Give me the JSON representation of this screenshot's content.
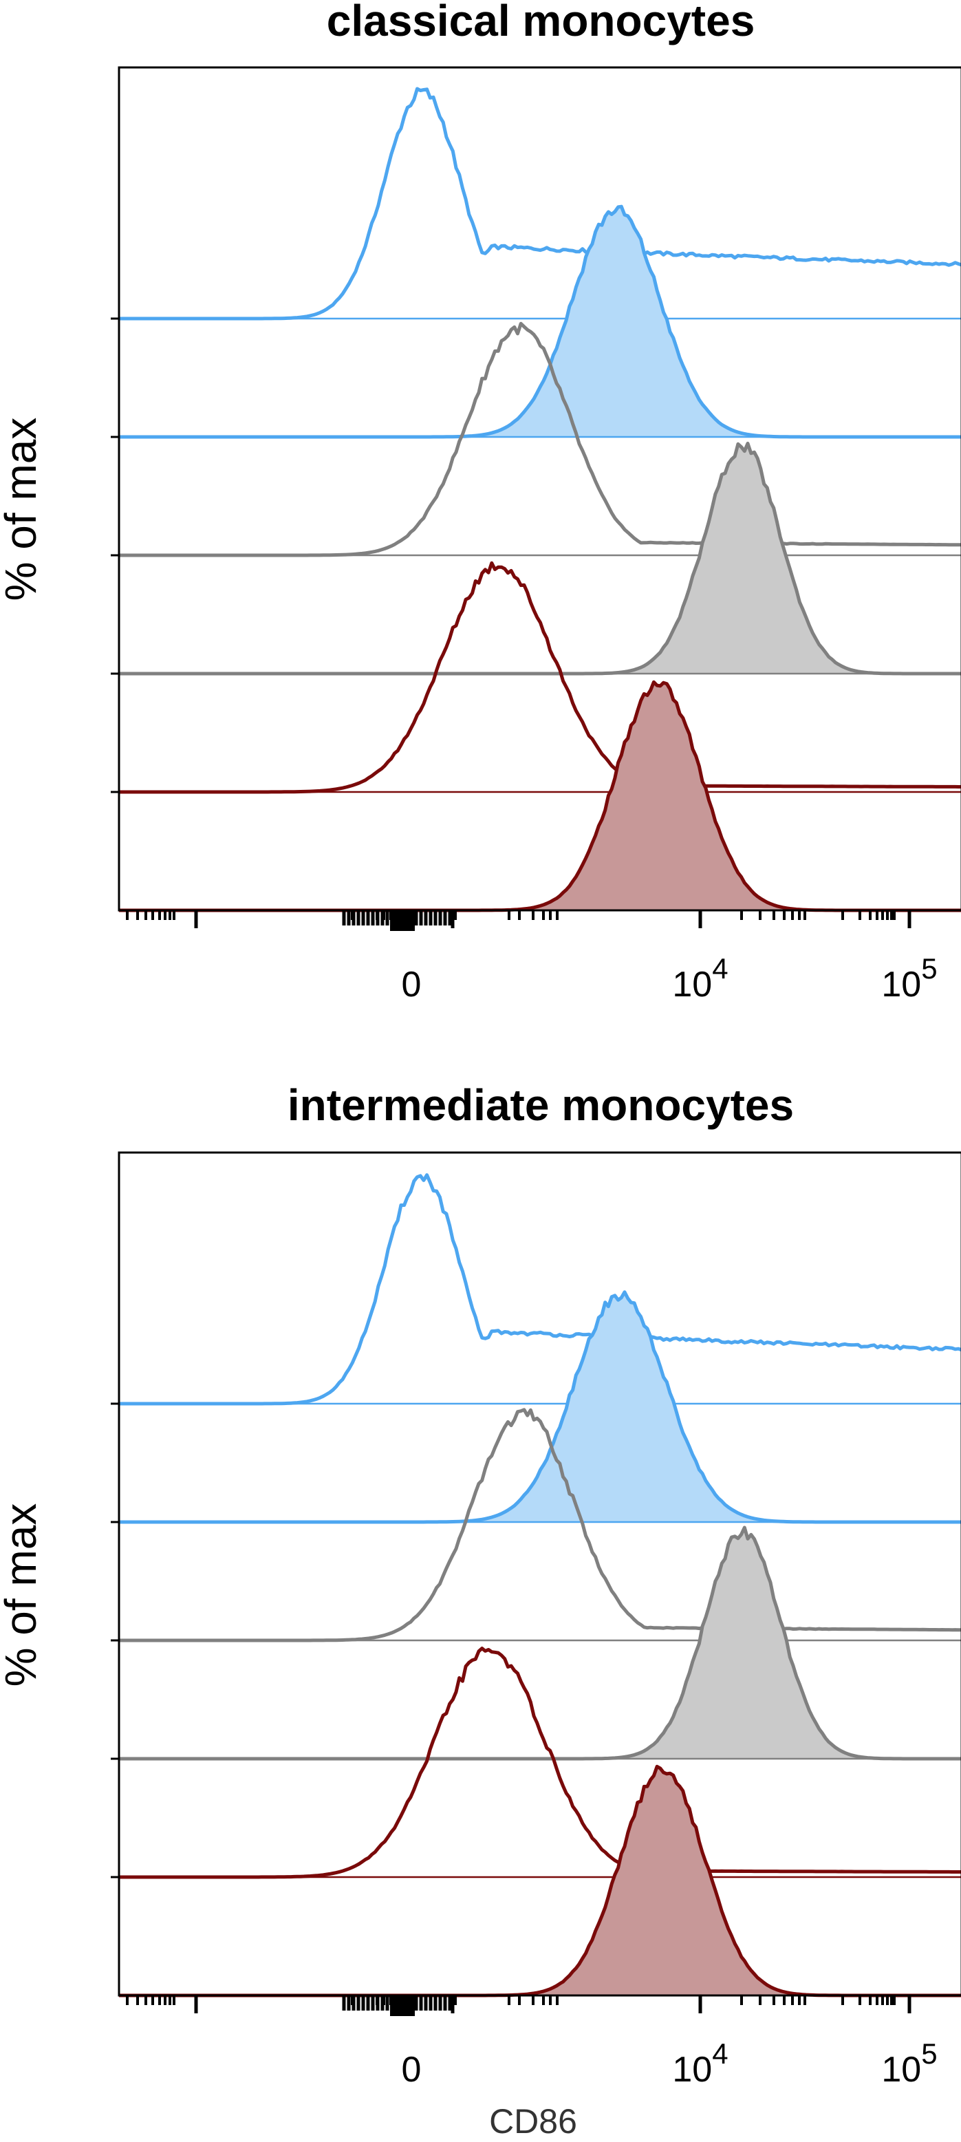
{
  "chart_data": [
    {
      "type": "area",
      "title": "classical monocytes",
      "ylabel": "% of max",
      "xlabel": "",
      "x_scale": "biexponential",
      "x_ticks": [
        {
          "label": "0",
          "exp": ""
        },
        {
          "label": "10",
          "exp": "4"
        },
        {
          "label": "10",
          "exp": "5"
        }
      ],
      "grid": false,
      "series": [
        {
          "color": "#4DA6F0",
          "fill": false,
          "baseline_offset": 0,
          "peak_x": 0.36,
          "width": 0.045,
          "tail": 0.33
        },
        {
          "color": "#4DA6F0",
          "fill": true,
          "baseline_offset": 1,
          "peak_x": 0.59,
          "width": 0.052,
          "tail": 0.0
        },
        {
          "color": "#808080",
          "fill": false,
          "baseline_offset": 2,
          "peak_x": 0.475,
          "width": 0.06,
          "tail": 0.06
        },
        {
          "color": "#808080",
          "fill": true,
          "baseline_offset": 3,
          "peak_x": 0.74,
          "width": 0.045,
          "tail": 0.0
        },
        {
          "color": "#7A0A0A",
          "fill": false,
          "baseline_offset": 4,
          "peak_x": 0.45,
          "width": 0.065,
          "tail": 0.03
        },
        {
          "color": "#7A0A0A",
          "fill": true,
          "baseline_offset": 5,
          "peak_x": 0.64,
          "width": 0.05,
          "tail": 0.0
        }
      ]
    },
    {
      "type": "area",
      "title": "intermediate monocytes",
      "ylabel": "% of max",
      "xlabel": "CD86",
      "x_scale": "biexponential",
      "x_ticks": [
        {
          "label": "0",
          "exp": ""
        },
        {
          "label": "10",
          "exp": "4"
        },
        {
          "label": "10",
          "exp": "5"
        }
      ],
      "grid": false,
      "series": [
        {
          "color": "#4DA6F0",
          "fill": false,
          "baseline_offset": 0,
          "peak_x": 0.36,
          "width": 0.045,
          "tail": 0.33
        },
        {
          "color": "#4DA6F0",
          "fill": true,
          "baseline_offset": 1,
          "peak_x": 0.595,
          "width": 0.055,
          "tail": 0.0
        },
        {
          "color": "#808080",
          "fill": false,
          "baseline_offset": 2,
          "peak_x": 0.48,
          "width": 0.06,
          "tail": 0.06
        },
        {
          "color": "#808080",
          "fill": true,
          "baseline_offset": 3,
          "peak_x": 0.74,
          "width": 0.045,
          "tail": 0.0
        },
        {
          "color": "#7A0A0A",
          "fill": false,
          "baseline_offset": 4,
          "peak_x": 0.44,
          "width": 0.065,
          "tail": 0.03
        },
        {
          "color": "#7A0A0A",
          "fill": true,
          "baseline_offset": 5,
          "peak_x": 0.645,
          "width": 0.05,
          "tail": 0.0
        }
      ]
    }
  ]
}
